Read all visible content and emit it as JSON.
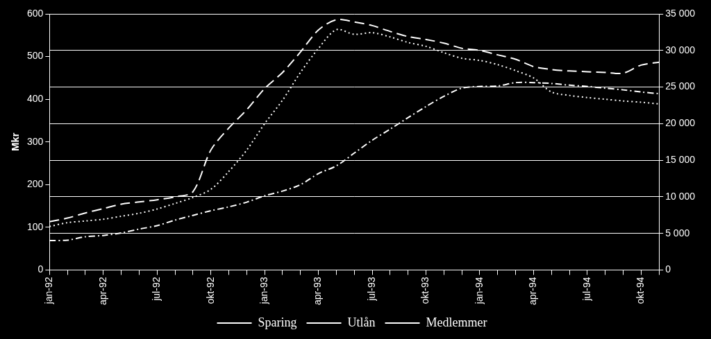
{
  "chart_data": {
    "type": "line",
    "y_label": "Mkr",
    "categories": [
      "jan-92",
      null,
      null,
      "apr-92",
      null,
      null,
      "jul-92",
      null,
      null,
      "okt-92",
      null,
      null,
      "jan-93",
      null,
      null,
      "apr-93",
      null,
      null,
      "jul-93",
      null,
      null,
      "okt-93",
      null,
      null,
      "jan-94",
      null,
      null,
      "apr-94",
      null,
      null,
      "jul-94",
      null,
      null,
      "okt-94",
      null
    ],
    "series": [
      {
        "name": "Sparing",
        "color": "#ffffff",
        "line_style": "dotted",
        "values": [
          102,
          111,
          115,
          119,
          126,
          133,
          143,
          156,
          170,
          189,
          231,
          281,
          343,
          398,
          463,
          519,
          563,
          552,
          556,
          546,
          533,
          524,
          509,
          496,
          491,
          481,
          467,
          450,
          417,
          409,
          404,
          400,
          396,
          393,
          389
        ]
      },
      {
        "name": "Utlån",
        "color": "#ffffff",
        "line_style": "dashdot",
        "values": [
          69,
          70,
          78,
          81,
          87,
          96,
          104,
          117,
          128,
          139,
          148,
          159,
          174,
          185,
          200,
          226,
          244,
          274,
          304,
          330,
          357,
          383,
          407,
          426,
          430,
          431,
          439,
          439,
          437,
          433,
          430,
          426,
          422,
          417,
          413
        ]
      },
      {
        "name": "Medlemmer",
        "color": "#ffffff",
        "line_style": "dashed",
        "axis": "y2",
        "values": [
          6600,
          7100,
          7800,
          8400,
          9000,
          9300,
          9600,
          10000,
          10700,
          16400,
          19400,
          21900,
          24800,
          27000,
          29800,
          32800,
          34200,
          33900,
          33400,
          32600,
          31900,
          31500,
          31000,
          30300,
          30000,
          29400,
          28800,
          27800,
          27400,
          27200,
          27100,
          27000,
          26900,
          28000,
          28400
        ]
      }
    ],
    "ylim": [
      0,
      600
    ],
    "yticks": [
      0,
      100,
      200,
      300,
      400,
      500,
      600
    ],
    "y2lim": [
      0,
      35000
    ],
    "y2ticks": [
      0,
      {
        "value": 5000,
        "label": "5 000"
      },
      {
        "value": 10000,
        "label": "10 000"
      },
      {
        "value": 15000,
        "label": "15 000"
      },
      {
        "value": 20000,
        "label": "20 000"
      },
      {
        "value": 25000,
        "label": "25 000"
      },
      {
        "value": 30000,
        "label": "30 000"
      },
      {
        "value": 35000,
        "label": "35 000"
      }
    ],
    "grid": true,
    "legend": "bottom"
  }
}
